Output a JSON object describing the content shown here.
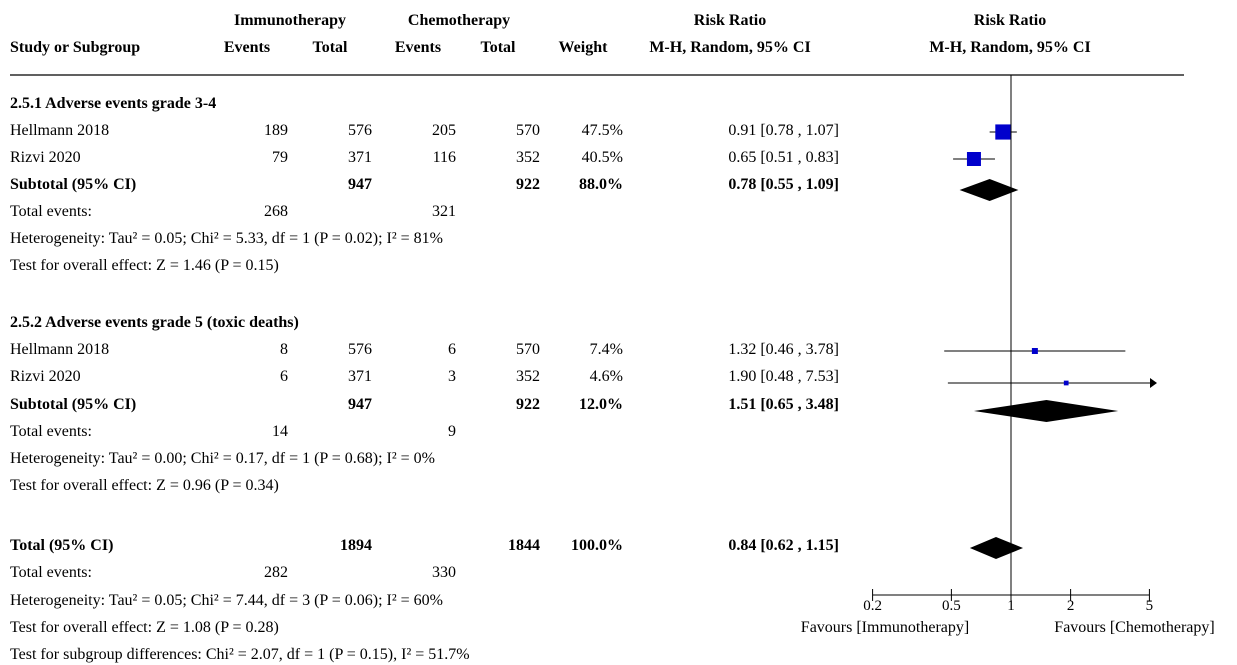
{
  "header": {
    "group1": "Immunotherapy",
    "group2": "Chemotherapy",
    "rr_header": "Risk Ratio",
    "rr_plot_header": "Risk Ratio",
    "col_study": "Study or Subgroup",
    "col_events1": "Events",
    "col_total1": "Total",
    "col_events2": "Events",
    "col_total2": "Total",
    "col_weight": "Weight",
    "col_method": "M-H, Random, 95% CI",
    "col_method_plot": "M-H, Random, 95% CI"
  },
  "subgroups": [
    {
      "title": "2.5.1 Adverse events grade 3-4",
      "studies": [
        {
          "name": "Hellmann 2018",
          "e1": "189",
          "t1": "576",
          "e2": "205",
          "t2": "570",
          "weight": "47.5%",
          "ci": "0.91 [0.78 , 1.07]"
        },
        {
          "name": "Rizvi 2020",
          "e1": "79",
          "t1": "371",
          "e2": "116",
          "t2": "352",
          "weight": "40.5%",
          "ci": "0.65 [0.51 , 0.83]"
        }
      ],
      "subtotal": {
        "label": "Subtotal (95% CI)",
        "t1": "947",
        "t2": "922",
        "weight": "88.0%",
        "ci": "0.78 [0.55 , 1.09]"
      },
      "total_events": {
        "label": "Total events:",
        "e1": "268",
        "e2": "321"
      },
      "heterogeneity": "Heterogeneity: Tau² = 0.05; Chi² = 5.33, df = 1 (P = 0.02); I² = 81%",
      "overall": "Test for overall effect: Z = 1.46 (P = 0.15)"
    },
    {
      "title": "2.5.2 Adverse events grade 5 (toxic deaths)",
      "studies": [
        {
          "name": "Hellmann 2018",
          "e1": "8",
          "t1": "576",
          "e2": "6",
          "t2": "570",
          "weight": "7.4%",
          "ci": "1.32 [0.46 , 3.78]"
        },
        {
          "name": "Rizvi 2020",
          "e1": "6",
          "t1": "371",
          "e2": "3",
          "t2": "352",
          "weight": "4.6%",
          "ci": "1.90 [0.48 , 7.53]"
        }
      ],
      "subtotal": {
        "label": "Subtotal (95% CI)",
        "t1": "947",
        "t2": "922",
        "weight": "12.0%",
        "ci": "1.51 [0.65 , 3.48]"
      },
      "total_events": {
        "label": "Total events:",
        "e1": "14",
        "e2": "9"
      },
      "heterogeneity": "Heterogeneity: Tau² = 0.00; Chi² = 0.17, df = 1 (P = 0.68); I² = 0%",
      "overall": "Test for overall effect: Z = 0.96 (P = 0.34)"
    }
  ],
  "total": {
    "label": "Total (95% CI)",
    "t1": "1894",
    "t2": "1844",
    "weight": "100.0%",
    "ci": "0.84 [0.62 , 1.15]",
    "events_label": "Total events:",
    "e1": "282",
    "e2": "330",
    "heterogeneity": "Heterogeneity: Tau² = 0.05; Chi² = 7.44, df = 3 (P = 0.06); I² = 60%",
    "overall": "Test for overall effect: Z = 1.08 (P = 0.28)",
    "subgroup_diff": "Test for subgroup differences: Chi² = 2.07, df = 1 (P = 0.15), I² = 51.7%"
  },
  "axis": {
    "favours_left": "Favours [Immunotherapy]",
    "favours_right": "Favours [Chemotherapy]"
  },
  "chart_data": {
    "type": "forest",
    "scale": "log",
    "xlim": [
      0.2,
      5
    ],
    "ticks": [
      0.2,
      0.5,
      1,
      2,
      5
    ],
    "tick_labels": [
      "0.2",
      "0.5",
      "1",
      "2",
      "5"
    ],
    "marker_color": "#0000cc",
    "diamond_color": "#000000",
    "studies": [
      {
        "name": "Hellmann 2018",
        "subgroup": "2.5.1",
        "rr": 0.91,
        "lo": 0.78,
        "hi": 1.07,
        "weight": 47.5
      },
      {
        "name": "Rizvi 2020",
        "subgroup": "2.5.1",
        "rr": 0.65,
        "lo": 0.51,
        "hi": 0.83,
        "weight": 40.5
      },
      {
        "name": "Hellmann 2018",
        "subgroup": "2.5.2",
        "rr": 1.32,
        "lo": 0.46,
        "hi": 3.78,
        "weight": 7.4
      },
      {
        "name": "Rizvi 2020",
        "subgroup": "2.5.2",
        "rr": 1.9,
        "lo": 0.48,
        "hi": 7.53,
        "weight": 4.6
      }
    ],
    "pooled": [
      {
        "name": "Subtotal 2.5.1",
        "rr": 0.78,
        "lo": 0.55,
        "hi": 1.09
      },
      {
        "name": "Subtotal 2.5.2",
        "rr": 1.51,
        "lo": 0.65,
        "hi": 3.48
      },
      {
        "name": "Total",
        "rr": 0.84,
        "lo": 0.62,
        "hi": 1.15
      }
    ]
  }
}
